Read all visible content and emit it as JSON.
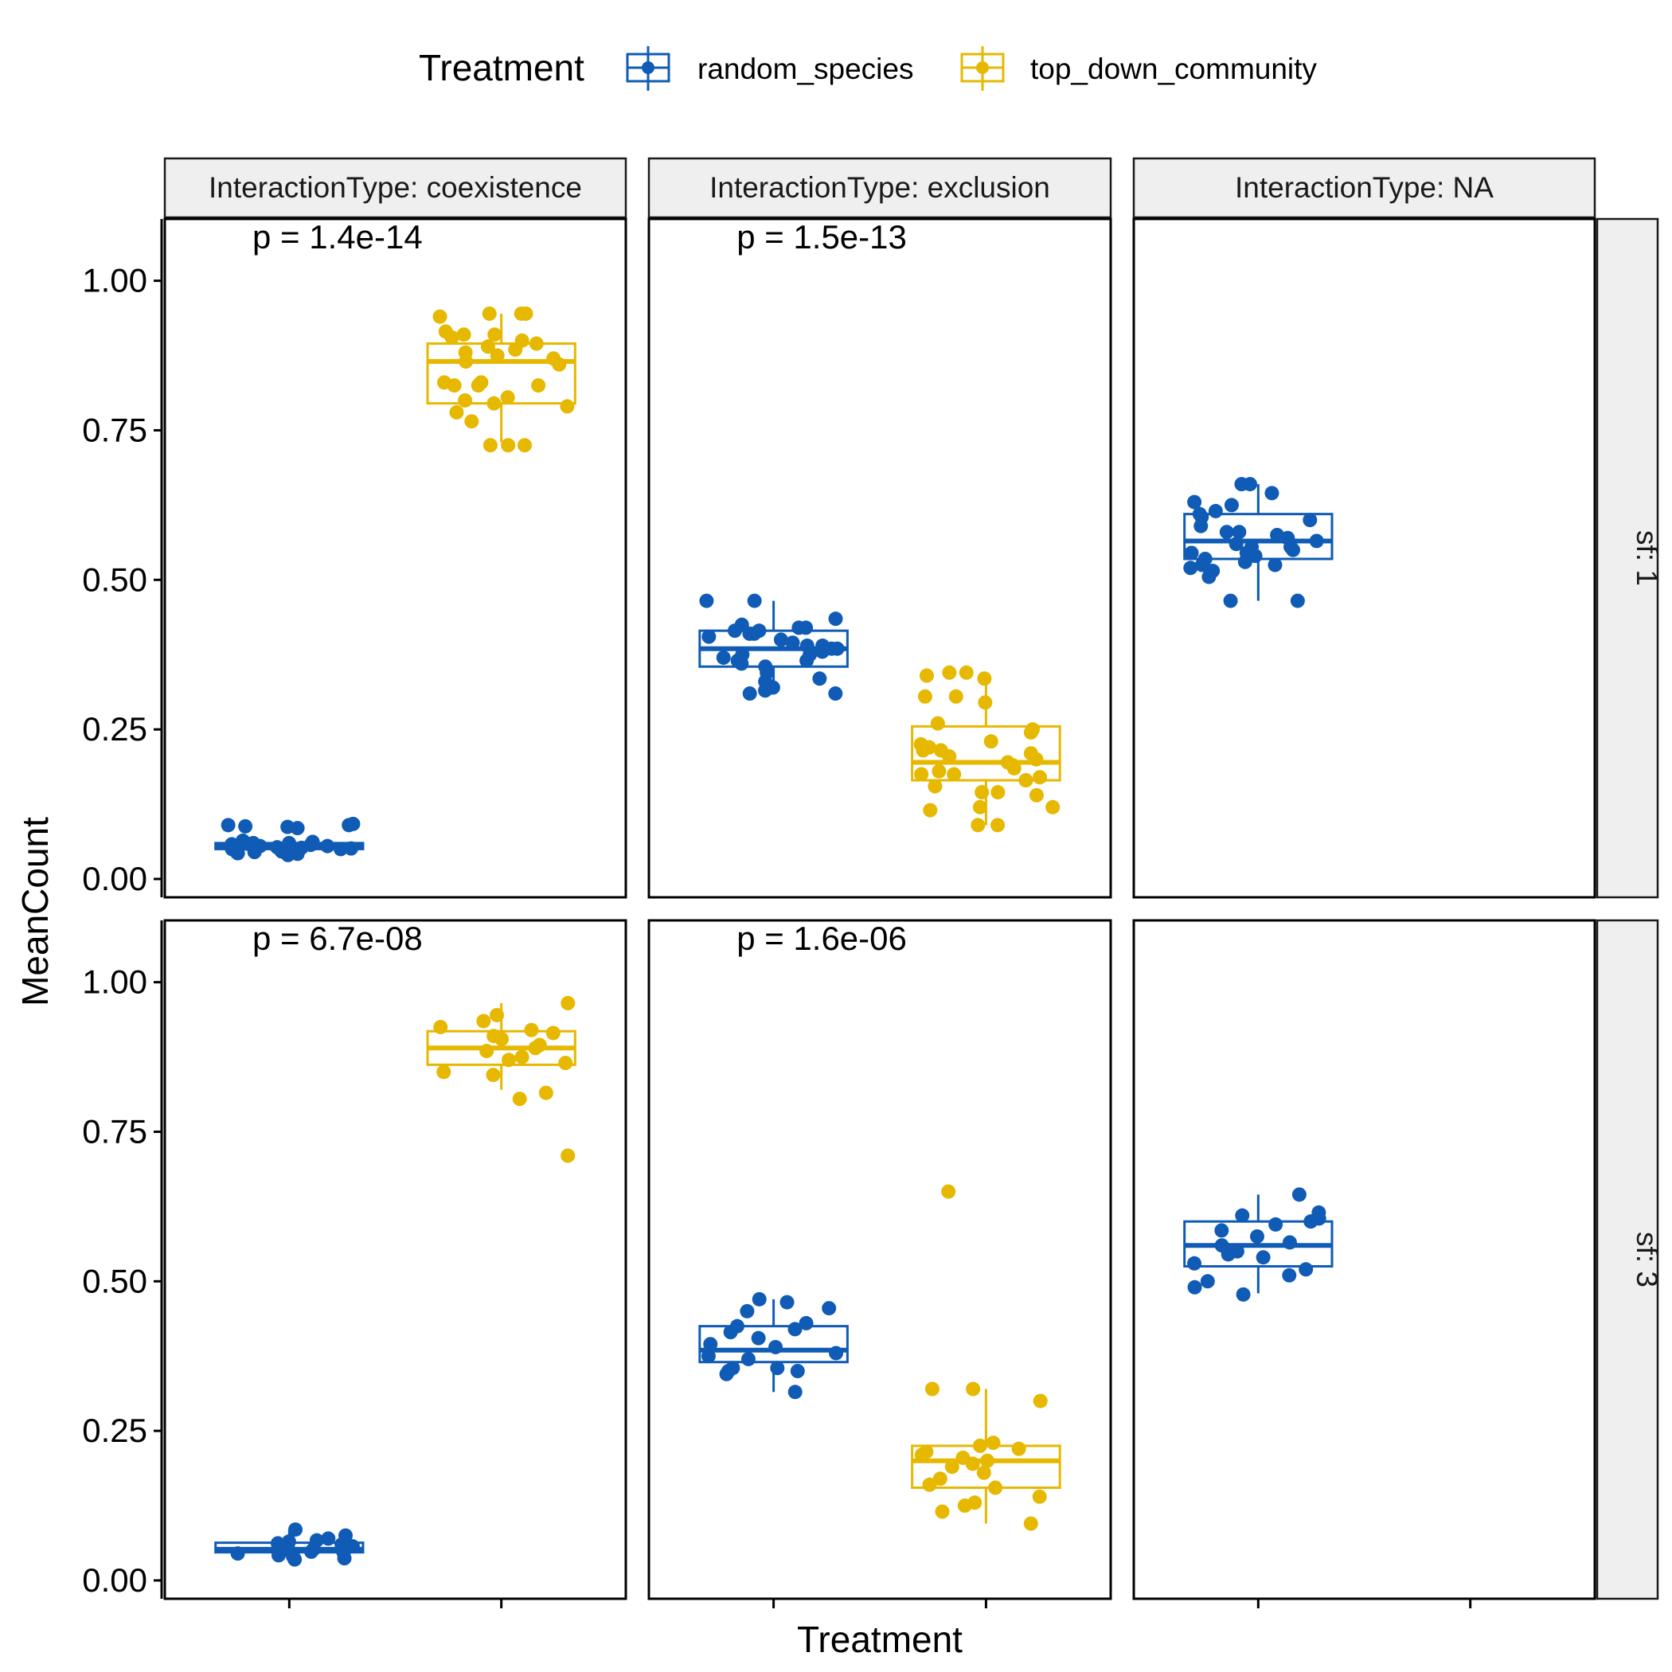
{
  "chart_data": {
    "type": "boxplot",
    "xlabel": "Treatment",
    "ylabel": "MeanCount",
    "ylim": [
      0,
      1
    ],
    "yticks": [
      "0.00",
      "0.25",
      "0.50",
      "0.75",
      "1.00"
    ],
    "legend": {
      "title": "Treatment",
      "position": "top",
      "entries": [
        "random_species",
        "top_down_community"
      ]
    },
    "colors": {
      "random_species": "#0F5BB5",
      "top_down_community": "#E6B800"
    },
    "columns": [
      "InteractionType: coexistence",
      "InteractionType: exclusion",
      "InteractionType: NA"
    ],
    "rows": [
      "sf: 1",
      "sf: 3"
    ],
    "categories": [
      "random_species",
      "top_down_community"
    ],
    "panels": [
      {
        "row": 0,
        "col": 0,
        "pvalue": "p = 1.4e-14",
        "boxes": [
          {
            "series": "random_species",
            "q1": 0.05,
            "median": 0.055,
            "q3": 0.06,
            "whisker_low": 0.045,
            "whisker_high": 0.065,
            "points": [
              0.04,
              0.042,
              0.044,
              0.045,
              0.047,
              0.048,
              0.05,
              0.05,
              0.052,
              0.053,
              0.055,
              0.055,
              0.057,
              0.058,
              0.06,
              0.06,
              0.062,
              0.064,
              0.085,
              0.087,
              0.088,
              0.09,
              0.09,
              0.092,
              0.043,
              0.046,
              0.051,
              0.059
            ]
          },
          {
            "series": "top_down_community",
            "q1": 0.795,
            "median": 0.865,
            "q3": 0.895,
            "whisker_low": 0.73,
            "whisker_high": 0.945,
            "points": [
              0.725,
              0.725,
              0.725,
              0.765,
              0.78,
              0.79,
              0.795,
              0.8,
              0.805,
              0.825,
              0.825,
              0.825,
              0.83,
              0.83,
              0.83,
              0.86,
              0.865,
              0.87,
              0.875,
              0.88,
              0.885,
              0.89,
              0.895,
              0.9,
              0.905,
              0.91,
              0.91,
              0.915,
              0.94,
              0.945,
              0.945,
              0.945
            ]
          }
        ]
      },
      {
        "row": 0,
        "col": 1,
        "pvalue": "p = 1.5e-13",
        "boxes": [
          {
            "series": "random_species",
            "q1": 0.355,
            "median": 0.385,
            "q3": 0.415,
            "whisker_low": 0.31,
            "whisker_high": 0.465,
            "points": [
              0.31,
              0.31,
              0.315,
              0.32,
              0.33,
              0.335,
              0.345,
              0.355,
              0.36,
              0.365,
              0.365,
              0.37,
              0.375,
              0.375,
              0.38,
              0.385,
              0.385,
              0.39,
              0.39,
              0.395,
              0.4,
              0.405,
              0.41,
              0.41,
              0.415,
              0.415,
              0.42,
              0.42,
              0.425,
              0.435,
              0.465,
              0.465
            ]
          },
          {
            "series": "top_down_community",
            "q1": 0.165,
            "median": 0.195,
            "q3": 0.255,
            "whisker_low": 0.09,
            "whisker_high": 0.345,
            "points": [
              0.09,
              0.09,
              0.115,
              0.12,
              0.12,
              0.14,
              0.145,
              0.145,
              0.155,
              0.165,
              0.17,
              0.175,
              0.175,
              0.18,
              0.185,
              0.19,
              0.195,
              0.2,
              0.205,
              0.21,
              0.215,
              0.215,
              0.22,
              0.225,
              0.23,
              0.245,
              0.25,
              0.26,
              0.295,
              0.305,
              0.305,
              0.335,
              0.34,
              0.345,
              0.345
            ]
          }
        ]
      },
      {
        "row": 0,
        "col": 2,
        "pvalue": "",
        "boxes": [
          {
            "series": "random_species",
            "q1": 0.535,
            "median": 0.565,
            "q3": 0.61,
            "whisker_low": 0.465,
            "whisker_high": 0.66,
            "points": [
              0.465,
              0.465,
              0.505,
              0.515,
              0.52,
              0.525,
              0.525,
              0.53,
              0.535,
              0.54,
              0.545,
              0.545,
              0.55,
              0.555,
              0.555,
              0.56,
              0.565,
              0.57,
              0.575,
              0.58,
              0.58,
              0.59,
              0.6,
              0.605,
              0.61,
              0.615,
              0.625,
              0.63,
              0.645,
              0.66,
              0.66
            ]
          }
        ]
      },
      {
        "row": 1,
        "col": 0,
        "pvalue": "p = 6.7e-08",
        "boxes": [
          {
            "series": "random_species",
            "q1": 0.047,
            "median": 0.052,
            "q3": 0.063,
            "whisker_low": 0.035,
            "whisker_high": 0.085,
            "points": [
              0.035,
              0.037,
              0.04,
              0.042,
              0.045,
              0.047,
              0.048,
              0.05,
              0.05,
              0.052,
              0.055,
              0.057,
              0.06,
              0.062,
              0.065,
              0.067,
              0.07,
              0.075,
              0.085
            ]
          },
          {
            "series": "top_down_community",
            "q1": 0.862,
            "median": 0.89,
            "q3": 0.918,
            "whisker_low": 0.82,
            "whisker_high": 0.965,
            "points": [
              0.71,
              0.805,
              0.815,
              0.845,
              0.85,
              0.865,
              0.87,
              0.875,
              0.885,
              0.89,
              0.895,
              0.905,
              0.91,
              0.915,
              0.92,
              0.925,
              0.935,
              0.945,
              0.965
            ]
          }
        ]
      },
      {
        "row": 1,
        "col": 1,
        "pvalue": "p = 1.6e-06",
        "boxes": [
          {
            "series": "random_species",
            "q1": 0.365,
            "median": 0.385,
            "q3": 0.425,
            "whisker_low": 0.315,
            "whisker_high": 0.47,
            "points": [
              0.315,
              0.345,
              0.35,
              0.35,
              0.355,
              0.355,
              0.37,
              0.375,
              0.38,
              0.39,
              0.395,
              0.405,
              0.415,
              0.42,
              0.425,
              0.43,
              0.45,
              0.455,
              0.465,
              0.47
            ]
          },
          {
            "series": "top_down_community",
            "q1": 0.155,
            "median": 0.2,
            "q3": 0.225,
            "whisker_low": 0.095,
            "whisker_high": 0.32,
            "points": [
              0.095,
              0.115,
              0.125,
              0.13,
              0.14,
              0.155,
              0.16,
              0.17,
              0.18,
              0.19,
              0.195,
              0.2,
              0.205,
              0.21,
              0.215,
              0.22,
              0.225,
              0.23,
              0.3,
              0.32,
              0.32,
              0.65
            ]
          }
        ]
      },
      {
        "row": 1,
        "col": 2,
        "pvalue": "",
        "boxes": [
          {
            "series": "random_species",
            "q1": 0.525,
            "median": 0.56,
            "q3": 0.6,
            "whisker_low": 0.48,
            "whisker_high": 0.645,
            "points": [
              0.478,
              0.49,
              0.5,
              0.51,
              0.52,
              0.53,
              0.54,
              0.545,
              0.55,
              0.56,
              0.565,
              0.575,
              0.585,
              0.595,
              0.6,
              0.605,
              0.61,
              0.615,
              0.645
            ]
          }
        ]
      }
    ]
  }
}
